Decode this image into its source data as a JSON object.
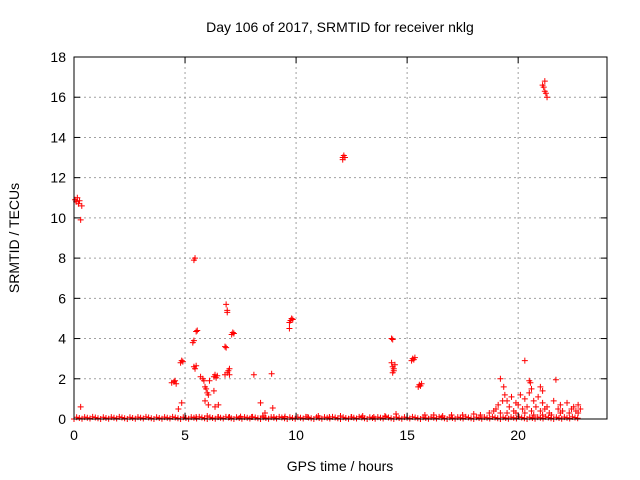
{
  "chart_data": {
    "type": "scatter",
    "title": "Day 106 of 2017, SRMTID for receiver nklg",
    "xlabel": "GPS time / hours",
    "ylabel": "SRMTID / TECUs",
    "xlim": [
      0,
      24
    ],
    "ylim": [
      0,
      18
    ],
    "xticks": [
      0,
      5,
      10,
      15,
      20
    ],
    "yticks": [
      0,
      2,
      4,
      6,
      8,
      10,
      12,
      14,
      16,
      18
    ],
    "xtick_labels": [
      "0",
      "5",
      "10",
      "15",
      "20"
    ],
    "ytick_labels": [
      "0",
      "2",
      "4",
      "6",
      "8",
      "10",
      "12",
      "14",
      "16",
      "18"
    ],
    "grid": true,
    "series": [
      {
        "name": "SRMTID",
        "color": "#ff0000",
        "marker": "plus",
        "points": [
          [
            0.05,
            10.9
          ],
          [
            0.1,
            10.8
          ],
          [
            0.15,
            11.0
          ],
          [
            0.2,
            10.7
          ],
          [
            0.25,
            10.85
          ],
          [
            0.3,
            9.9
          ],
          [
            0.35,
            10.6
          ],
          [
            0.3,
            0.6
          ],
          [
            4.4,
            1.8
          ],
          [
            4.5,
            1.85
          ],
          [
            4.55,
            1.9
          ],
          [
            4.6,
            1.75
          ],
          [
            4.8,
            2.8
          ],
          [
            4.85,
            2.9
          ],
          [
            4.9,
            2.85
          ],
          [
            4.7,
            0.5
          ],
          [
            4.85,
            0.8
          ],
          [
            5.4,
            7.9
          ],
          [
            5.45,
            8.0
          ],
          [
            5.35,
            3.8
          ],
          [
            5.4,
            3.9
          ],
          [
            5.5,
            4.35
          ],
          [
            5.55,
            4.4
          ],
          [
            5.4,
            2.6
          ],
          [
            5.45,
            2.5
          ],
          [
            5.5,
            2.65
          ],
          [
            5.7,
            2.1
          ],
          [
            5.8,
            2.0
          ],
          [
            5.85,
            1.9
          ],
          [
            5.9,
            1.6
          ],
          [
            5.95,
            1.5
          ],
          [
            6.0,
            1.3
          ],
          [
            6.05,
            1.2
          ],
          [
            5.9,
            0.9
          ],
          [
            6.1,
            1.9
          ],
          [
            6.05,
            0.7
          ],
          [
            6.3,
            2.1
          ],
          [
            6.35,
            2.2
          ],
          [
            6.4,
            2.05
          ],
          [
            6.45,
            2.15
          ],
          [
            6.3,
            1.4
          ],
          [
            6.35,
            0.6
          ],
          [
            6.5,
            0.7
          ],
          [
            6.8,
            3.6
          ],
          [
            6.85,
            3.55
          ],
          [
            6.9,
            5.3
          ],
          [
            6.85,
            5.7
          ],
          [
            6.9,
            5.4
          ],
          [
            6.8,
            2.2
          ],
          [
            6.9,
            2.3
          ],
          [
            6.95,
            2.4
          ],
          [
            7.0,
            2.5
          ],
          [
            7.0,
            2.2
          ],
          [
            7.1,
            4.2
          ],
          [
            7.15,
            4.3
          ],
          [
            7.2,
            4.25
          ],
          [
            8.1,
            2.2
          ],
          [
            8.4,
            0.8
          ],
          [
            8.6,
            0.3
          ],
          [
            8.9,
            2.25
          ],
          [
            8.95,
            0.55
          ],
          [
            9.7,
            4.8
          ],
          [
            9.75,
            4.9
          ],
          [
            9.8,
            5.0
          ],
          [
            9.7,
            4.5
          ],
          [
            9.85,
            4.95
          ],
          [
            12.1,
            13.0
          ],
          [
            12.15,
            13.1
          ],
          [
            12.1,
            12.9
          ],
          [
            12.2,
            13.0
          ],
          [
            14.3,
            4.0
          ],
          [
            14.35,
            3.95
          ],
          [
            14.3,
            2.8
          ],
          [
            14.35,
            2.6
          ],
          [
            14.4,
            2.4
          ],
          [
            14.35,
            2.3
          ],
          [
            14.4,
            2.5
          ],
          [
            14.45,
            2.7
          ],
          [
            15.2,
            2.9
          ],
          [
            15.25,
            3.0
          ],
          [
            15.3,
            2.95
          ],
          [
            15.35,
            3.05
          ],
          [
            15.5,
            1.6
          ],
          [
            15.55,
            1.7
          ],
          [
            15.6,
            1.65
          ],
          [
            15.65,
            1.75
          ],
          [
            21.1,
            16.6
          ],
          [
            21.15,
            16.5
          ],
          [
            21.2,
            16.8
          ],
          [
            21.25,
            16.2
          ],
          [
            21.3,
            16.0
          ],
          [
            21.2,
            16.3
          ],
          [
            20.3,
            2.9
          ],
          [
            20.5,
            1.9
          ],
          [
            20.55,
            1.8
          ],
          [
            20.6,
            1.5
          ],
          [
            21.7,
            1.95
          ],
          [
            21.0,
            1.6
          ],
          [
            21.1,
            1.4
          ],
          [
            19.2,
            2.0
          ],
          [
            19.35,
            1.6
          ],
          [
            19.5,
            0.9
          ],
          [
            19.7,
            1.1
          ],
          [
            19.9,
            0.8
          ],
          [
            20.1,
            1.2
          ],
          [
            20.3,
            1.0
          ],
          [
            20.5,
            1.3
          ],
          [
            20.7,
            0.9
          ],
          [
            20.9,
            1.1
          ],
          [
            21.1,
            0.8
          ],
          [
            21.3,
            0.6
          ],
          [
            21.6,
            0.9
          ],
          [
            21.9,
            0.7
          ],
          [
            22.2,
            0.8
          ],
          [
            22.5,
            0.6
          ],
          [
            22.7,
            0.7
          ],
          [
            19.0,
            0.5
          ],
          [
            19.1,
            0.7
          ],
          [
            19.3,
            0.9
          ],
          [
            19.4,
            1.2
          ],
          [
            19.6,
            0.6
          ],
          [
            19.8,
            0.4
          ],
          [
            20.0,
            0.7
          ],
          [
            20.2,
            0.5
          ],
          [
            20.4,
            0.6
          ],
          [
            20.6,
            0.4
          ],
          [
            20.8,
            0.6
          ],
          [
            21.0,
            0.4
          ],
          [
            21.2,
            0.5
          ],
          [
            21.4,
            0.3
          ],
          [
            21.8,
            0.5
          ],
          [
            22.0,
            0.4
          ],
          [
            22.4,
            0.5
          ],
          [
            22.6,
            0.4
          ],
          [
            22.8,
            0.5
          ],
          [
            18.7,
            0.3
          ],
          [
            18.9,
            0.4
          ],
          [
            19.2,
            0.3
          ],
          [
            19.5,
            0.3
          ],
          [
            19.9,
            0.3
          ],
          [
            20.3,
            0.3
          ],
          [
            20.7,
            0.2
          ],
          [
            21.1,
            0.2
          ],
          [
            21.5,
            0.2
          ],
          [
            21.9,
            0.3
          ],
          [
            22.3,
            0.3
          ],
          [
            22.7,
            0.3
          ],
          [
            17.0,
            0.2
          ],
          [
            17.5,
            0.2
          ],
          [
            18.0,
            0.25
          ],
          [
            18.3,
            0.2
          ],
          [
            16.2,
            0.2
          ],
          [
            16.6,
            0.15
          ],
          [
            14.5,
            0.25
          ],
          [
            15.8,
            0.2
          ],
          [
            10.5,
            0.1
          ],
          [
            11.0,
            0.15
          ],
          [
            11.5,
            0.1
          ],
          [
            12.0,
            0.15
          ],
          [
            12.5,
            0.1
          ],
          [
            13.0,
            0.15
          ],
          [
            13.5,
            0.1
          ],
          [
            14.0,
            0.15
          ],
          [
            9.5,
            0.12
          ],
          [
            9.0,
            0.1
          ],
          [
            8.5,
            0.15
          ],
          [
            8.0,
            0.1
          ],
          [
            7.5,
            0.12
          ],
          [
            7.0,
            0.1
          ],
          [
            6.5,
            0.1
          ],
          [
            6.0,
            0.15
          ],
          [
            5.5,
            0.1
          ]
        ],
        "baseline_band": {
          "x_start": 0.0,
          "x_end": 22.8,
          "y_low": 0.0,
          "y_high": 0.12
        }
      }
    ]
  }
}
